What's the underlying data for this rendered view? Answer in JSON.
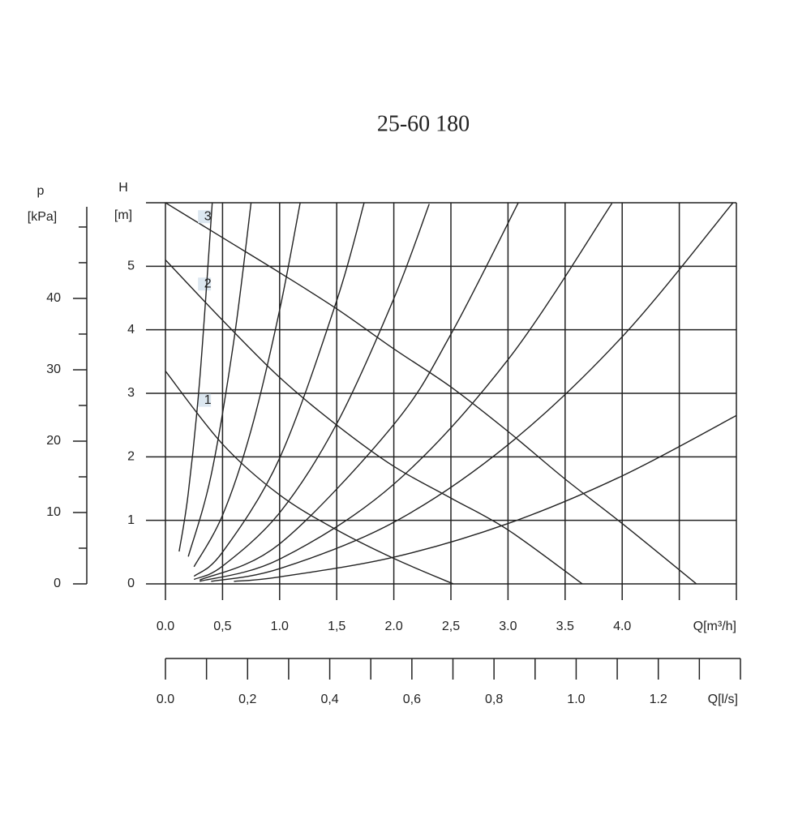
{
  "chart_data": {
    "type": "line",
    "title": "25-60 180",
    "x_label": "Q[m³/h]",
    "x2_label": "Q[l/s]",
    "y_label": "H",
    "y_unit": "[m]",
    "y2_label": "p",
    "y2_unit": "[kPa]",
    "xlim": [
      0,
      5
    ],
    "xticks": [
      {
        "value": 0,
        "label": "0.0"
      },
      {
        "value": 0.5,
        "label": "0,5"
      },
      {
        "value": 1,
        "label": "1.0"
      },
      {
        "value": 1.5,
        "label": "1,5"
      },
      {
        "value": 2,
        "label": "2.0"
      },
      {
        "value": 2.5,
        "label": "2,5"
      },
      {
        "value": 3,
        "label": "3.0"
      },
      {
        "value": 3.5,
        "label": "3.5"
      },
      {
        "value": 4,
        "label": "4.0"
      }
    ],
    "xminorticks": [
      4.5
    ],
    "x2lim": [
      0,
      1.4
    ],
    "x2ticks": [
      {
        "value": 0,
        "label": "0.0"
      },
      {
        "value": 0.2,
        "label": "0,2"
      },
      {
        "value": 0.4,
        "label": "0,4"
      },
      {
        "value": 0.6,
        "label": "0,6"
      },
      {
        "value": 0.8,
        "label": "0,8"
      },
      {
        "value": 1,
        "label": "1.0"
      },
      {
        "value": 1.2,
        "label": "1.2"
      }
    ],
    "x2minorticks": [
      0.1,
      0.3,
      0.5,
      0.7,
      0.9,
      1.1,
      1.3,
      1.4
    ],
    "ylim": [
      0,
      6
    ],
    "yticks": [
      0,
      1,
      2,
      3,
      4,
      5
    ],
    "y2lim": [
      0,
      53.4
    ],
    "y2ticks": [
      0,
      10,
      20,
      30,
      40
    ],
    "y2minorticks": [
      5,
      15,
      25,
      35,
      45,
      50
    ],
    "grid": true,
    "line_color": "#222222",
    "label_color": "#dce7f0",
    "series": [
      {
        "name": "3",
        "x": [
          0,
          0.5,
          1,
          1.5,
          2,
          2.5,
          3,
          3.5,
          4,
          4.65
        ],
        "values": [
          6.0,
          5.45,
          4.9,
          4.33,
          3.7,
          3.1,
          2.4,
          1.65,
          0.95,
          0
        ]
      },
      {
        "name": "2",
        "x": [
          0,
          0.5,
          1,
          1.5,
          2,
          2.5,
          3,
          3.65
        ],
        "values": [
          5.1,
          4.15,
          3.25,
          2.5,
          1.85,
          1.35,
          0.85,
          0
        ]
      },
      {
        "name": "1",
        "x": [
          0,
          0.5,
          1,
          1.5,
          2,
          2.52
        ],
        "values": [
          3.35,
          2.2,
          1.4,
          0.85,
          0.4,
          0
        ]
      },
      {
        "x": [
          0.12,
          0.2,
          0.3,
          0.41
        ],
        "values": [
          0.51,
          1.43,
          3.21,
          6.0
        ]
      },
      {
        "x": [
          0.2,
          0.4,
          0.6,
          0.75
        ],
        "values": [
          0.43,
          1.71,
          3.84,
          6.0
        ]
      },
      {
        "x": [
          0.25,
          0.5,
          0.75,
          1.0,
          1.18
        ],
        "values": [
          0.27,
          1.08,
          2.42,
          4.31,
          6.0
        ]
      },
      {
        "x": [
          0.25,
          0.5,
          1.0,
          1.5,
          1.74
        ],
        "values": [
          0.12,
          0.5,
          1.98,
          4.46,
          6.0
        ]
      },
      {
        "x": [
          0.25,
          0.5,
          1,
          1.5,
          2,
          2.31
        ],
        "values": [
          0.07,
          0.28,
          1.12,
          2.52,
          4.49,
          5.98
        ]
      },
      {
        "x": [
          0.3,
          1,
          2,
          2.5,
          3.09
        ],
        "values": [
          0.06,
          0.63,
          2.51,
          3.93,
          6.0
        ]
      },
      {
        "x": [
          0.3,
          1,
          2,
          3,
          3.91
        ],
        "values": [
          0.04,
          0.39,
          1.57,
          3.53,
          5.99
        ]
      },
      {
        "x": [
          0.4,
          1,
          2,
          3,
          4,
          4.97
        ],
        "values": [
          0.04,
          0.24,
          0.97,
          2.19,
          3.89,
          6.0
        ]
      },
      {
        "x": [
          0.6,
          1,
          2,
          3,
          4,
          5
        ],
        "values": [
          0.04,
          0.11,
          0.42,
          0.95,
          1.7,
          2.65
        ]
      }
    ]
  }
}
